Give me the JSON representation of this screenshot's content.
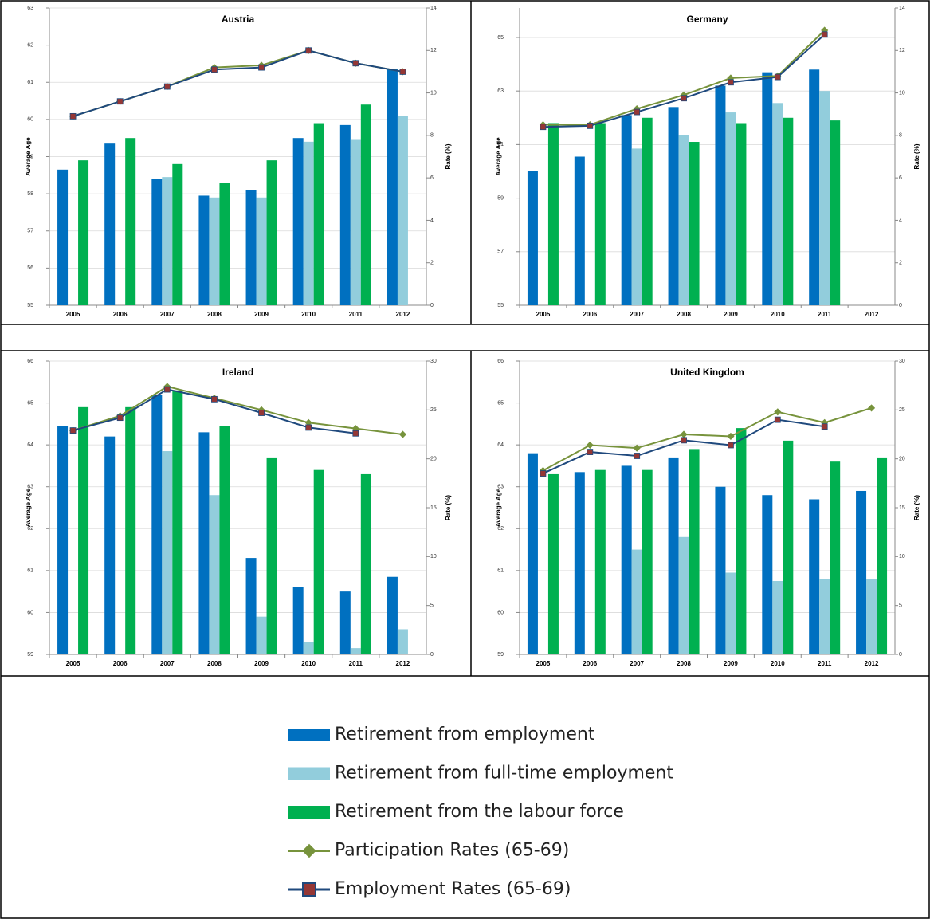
{
  "chart_data": [
    {
      "type": "combo",
      "title": "Austria",
      "categories": [
        "2005",
        "2006",
        "2007",
        "2008",
        "2009",
        "2010",
        "2011",
        "2012"
      ],
      "ylabel": "Average Age",
      "y2label": "Rate (%)",
      "ylim": [
        55,
        63
      ],
      "yticks": [
        55,
        56,
        57,
        58,
        59,
        60,
        61,
        62,
        63
      ],
      "y2lim": [
        0,
        14
      ],
      "y2ticks": [
        0,
        2,
        4,
        6,
        8,
        10,
        12,
        14
      ],
      "grid": true,
      "series": [
        {
          "name": "Retirement from employment",
          "type": "bar",
          "color": "#0070c0",
          "values": [
            58.65,
            59.35,
            58.4,
            57.95,
            58.1,
            59.5,
            59.85,
            61.35
          ]
        },
        {
          "name": "Retirement from full-time employment",
          "type": "bar",
          "color": "#92cddc",
          "values": [
            null,
            null,
            58.45,
            57.9,
            57.9,
            59.4,
            59.45,
            60.1
          ]
        },
        {
          "name": "Retirement from the labour force",
          "type": "bar",
          "color": "#00b050",
          "values": [
            58.9,
            59.5,
            58.8,
            58.3,
            58.9,
            59.9,
            60.4,
            null
          ]
        },
        {
          "name": "Participation Rates (65-69)",
          "type": "line",
          "axis": "y2",
          "color": "#77933c",
          "marker": "diamond",
          "marker_color": "#77933c",
          "values": [
            8.9,
            9.6,
            10.3,
            11.2,
            11.3,
            12.0,
            11.4,
            11.0
          ]
        },
        {
          "name": "Employment Rates (65-69)",
          "type": "line",
          "axis": "y2",
          "color": "#1f497d",
          "marker": "square",
          "marker_color": "#953735",
          "values": [
            8.9,
            9.6,
            10.3,
            11.1,
            11.2,
            12.0,
            11.4,
            11.0
          ]
        }
      ]
    },
    {
      "type": "combo",
      "title": "Germany",
      "categories": [
        "2005",
        "2006",
        "2007",
        "2008",
        "2009",
        "2010",
        "2011",
        "2012"
      ],
      "ylabel": "Average Age",
      "y2label": "Rate (%)",
      "ylim": [
        55,
        66.1
      ],
      "yticks": [
        55,
        57,
        59,
        61,
        63,
        65
      ],
      "y2lim": [
        0,
        14
      ],
      "y2ticks": [
        0,
        2,
        4,
        6,
        8,
        10,
        12,
        14
      ],
      "grid": true,
      "series": [
        {
          "name": "Retirement from employment",
          "type": "bar",
          "color": "#0070c0",
          "values": [
            60.0,
            60.55,
            62.1,
            62.4,
            63.2,
            63.7,
            63.8,
            null
          ]
        },
        {
          "name": "Retirement from full-time employment",
          "type": "bar",
          "color": "#92cddc",
          "values": [
            null,
            null,
            60.85,
            61.35,
            62.2,
            62.55,
            63.0,
            null
          ]
        },
        {
          "name": "Retirement from the labour force",
          "type": "bar",
          "color": "#00b050",
          "values": [
            61.8,
            61.8,
            62.0,
            61.1,
            61.8,
            62.0,
            61.9,
            null
          ]
        },
        {
          "name": "Participation Rates (65-69)",
          "type": "line",
          "axis": "y2",
          "color": "#77933c",
          "marker": "diamond",
          "marker_color": "#77933c",
          "values": [
            8.5,
            8.5,
            9.25,
            9.9,
            10.7,
            10.8,
            12.95,
            null
          ]
        },
        {
          "name": "Employment Rates (65-69)",
          "type": "line",
          "axis": "y2",
          "color": "#1f497d",
          "marker": "square",
          "marker_color": "#953735",
          "values": [
            8.4,
            8.45,
            9.1,
            9.75,
            10.5,
            10.75,
            12.75,
            null
          ]
        }
      ]
    },
    {
      "type": "combo",
      "title": "Ireland",
      "categories": [
        "2005",
        "2006",
        "2007",
        "2008",
        "2009",
        "2010",
        "2011",
        "2012"
      ],
      "ylabel": "Average Age",
      "y2label": "Rate (%)",
      "ylim": [
        59,
        66
      ],
      "yticks": [
        59,
        60,
        61,
        62,
        63,
        64,
        65,
        66
      ],
      "y2lim": [
        0,
        30
      ],
      "y2ticks": [
        0,
        5,
        10,
        15,
        20,
        25,
        30
      ],
      "grid": true,
      "series": [
        {
          "name": "Retirement from employment",
          "type": "bar",
          "color": "#0070c0",
          "values": [
            64.45,
            64.2,
            65.2,
            64.3,
            61.3,
            60.6,
            60.5,
            60.85
          ]
        },
        {
          "name": "Retirement from full-time employment",
          "type": "bar",
          "color": "#92cddc",
          "values": [
            null,
            null,
            63.85,
            62.8,
            59.9,
            59.3,
            59.15,
            59.6
          ]
        },
        {
          "name": "Retirement from the labour force",
          "type": "bar",
          "color": "#00b050",
          "values": [
            64.9,
            64.9,
            65.3,
            64.45,
            63.7,
            63.4,
            63.3,
            null
          ]
        },
        {
          "name": "Participation Rates (65-69)",
          "type": "line",
          "axis": "y2",
          "color": "#77933c",
          "marker": "diamond",
          "marker_color": "#77933c",
          "values": [
            22.9,
            24.4,
            27.4,
            26.2,
            25.0,
            23.7,
            23.1,
            22.5
          ]
        },
        {
          "name": "Employment Rates (65-69)",
          "type": "line",
          "axis": "y2",
          "color": "#1f497d",
          "marker": "square",
          "marker_color": "#953735",
          "values": [
            22.9,
            24.2,
            27.1,
            26.1,
            24.7,
            23.2,
            22.6,
            null
          ]
        }
      ]
    },
    {
      "type": "combo",
      "title": "United Kingdom",
      "categories": [
        "2005",
        "2006",
        "2007",
        "2008",
        "2009",
        "2010",
        "2011",
        "2012"
      ],
      "ylabel": "Average Age",
      "y2label": "Rate (%)",
      "ylim": [
        59,
        66
      ],
      "yticks": [
        59,
        60,
        61,
        62,
        63,
        64,
        65,
        66
      ],
      "y2lim": [
        0,
        30
      ],
      "y2ticks": [
        0,
        5,
        10,
        15,
        20,
        25,
        30
      ],
      "grid": true,
      "series": [
        {
          "name": "Retirement from employment",
          "type": "bar",
          "color": "#0070c0",
          "values": [
            63.8,
            63.35,
            63.5,
            63.7,
            63.0,
            62.8,
            62.7,
            62.9
          ]
        },
        {
          "name": "Retirement from full-time employment",
          "type": "bar",
          "color": "#92cddc",
          "values": [
            null,
            null,
            61.5,
            61.8,
            60.95,
            60.75,
            60.8,
            60.8
          ]
        },
        {
          "name": "Retirement from the labour force",
          "type": "bar",
          "color": "#00b050",
          "values": [
            63.3,
            63.4,
            63.4,
            63.9,
            64.4,
            64.1,
            63.6,
            63.7
          ]
        },
        {
          "name": "Participation Rates (65-69)",
          "type": "line",
          "axis": "y2",
          "color": "#77933c",
          "marker": "diamond",
          "marker_color": "#77933c",
          "values": [
            18.8,
            21.4,
            21.1,
            22.5,
            22.3,
            24.8,
            23.7,
            25.2
          ]
        },
        {
          "name": "Employment Rates (65-69)",
          "type": "line",
          "axis": "y2",
          "color": "#1f497d",
          "marker": "square",
          "marker_color": "#953735",
          "values": [
            18.5,
            20.7,
            20.3,
            21.9,
            21.4,
            24.0,
            23.3,
            null
          ]
        }
      ]
    }
  ]
}
